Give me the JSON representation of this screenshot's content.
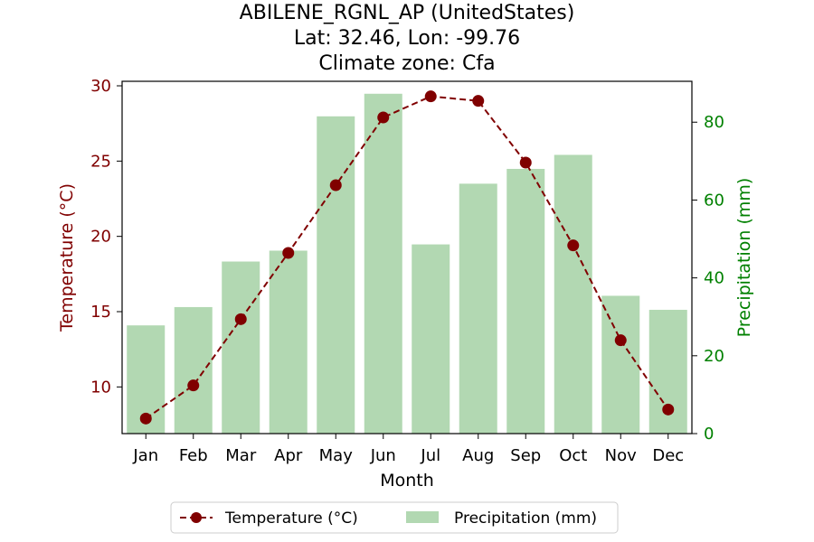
{
  "chart_data": {
    "type": "bar+line",
    "title_lines": [
      "ABILENE_RGNL_AP (UnitedStates)",
      "Lat: 32.46, Lon: -99.76",
      "Climate zone: Cfa"
    ],
    "xlabel": "Month",
    "categories": [
      "Jan",
      "Feb",
      "Mar",
      "Apr",
      "May",
      "Jun",
      "Jul",
      "Aug",
      "Sep",
      "Oct",
      "Nov",
      "Dec"
    ],
    "series": [
      {
        "name": "Temperature (°C)",
        "type": "line",
        "axis": "left",
        "color": "#800000",
        "line_style": "dashed",
        "marker": "circle",
        "values": [
          7.9,
          10.1,
          14.5,
          18.9,
          23.4,
          27.9,
          29.3,
          29.0,
          24.9,
          19.4,
          13.1,
          8.5
        ]
      },
      {
        "name": "Precipitation (mm)",
        "type": "bar",
        "axis": "right",
        "color": "#b2d8b2",
        "values": [
          27.8,
          32.5,
          44.2,
          47.0,
          81.5,
          87.3,
          48.6,
          64.2,
          68.0,
          71.6,
          35.4,
          31.8
        ]
      }
    ],
    "y_left": {
      "label": "Temperature (°C)",
      "color": "#800000",
      "range": [
        6.9,
        30.3
      ],
      "ticks": [
        10,
        15,
        20,
        25,
        30
      ]
    },
    "y_right": {
      "label": "Precipitation (mm)",
      "color": "#008000",
      "range": [
        0,
        90.5
      ],
      "ticks": [
        0,
        20,
        40,
        60,
        80
      ]
    },
    "legend": {
      "placement": "bottom-center",
      "items": [
        "Temperature (°C)",
        "Precipitation (mm)"
      ]
    },
    "grid": false
  }
}
